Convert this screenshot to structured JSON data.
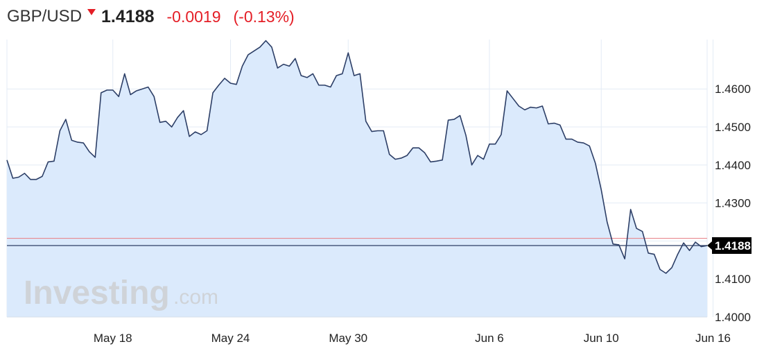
{
  "header": {
    "symbol": "GBP/USD",
    "direction_icon": "down-triangle-icon",
    "price": "1.4188",
    "change": "-0.0019",
    "change_pct": "(-0.13%)"
  },
  "watermark": {
    "brand": "Investing",
    "suffix": ".com"
  },
  "colors": {
    "line": "#2c3e66",
    "area": "#dbeafc",
    "negative": "#e41e26",
    "prev_close_line": "#e8898f",
    "last_line": "#2c3e66",
    "grid": "#e3ebf5"
  },
  "chart_data": {
    "type": "area",
    "title": "GBP/USD",
    "xlabel": "",
    "ylabel": "",
    "ylim": [
      1.4,
      1.473
    ],
    "y_ticks": [
      "1.4000",
      "1.4100",
      "1.4200",
      "1.4300",
      "1.4400",
      "1.4500",
      "1.4600"
    ],
    "x_ticks": [
      {
        "label": "May 18",
        "index": 18
      },
      {
        "label": "May 24",
        "index": 38
      },
      {
        "label": "May 30",
        "index": 58
      },
      {
        "label": "Jun 6",
        "index": 82
      },
      {
        "label": "Jun 10",
        "index": 101
      },
      {
        "label": "Jun 16",
        "index": 120
      }
    ],
    "reference_lines": {
      "previous_close": 1.4207,
      "last": 1.4188
    },
    "last_price_label": "1.4188",
    "series": [
      {
        "name": "GBP/USD",
        "values": [
          1.4413,
          1.4365,
          1.4368,
          1.4378,
          1.4362,
          1.4362,
          1.437,
          1.4408,
          1.441,
          1.449,
          1.452,
          1.4465,
          1.446,
          1.4458,
          1.4435,
          1.442,
          1.459,
          1.4597,
          1.4597,
          1.458,
          1.464,
          1.4585,
          1.4595,
          1.46,
          1.4605,
          1.458,
          1.4512,
          1.4515,
          1.45,
          1.4525,
          1.4543,
          1.4475,
          1.4487,
          1.448,
          1.449,
          1.459,
          1.461,
          1.4628,
          1.4615,
          1.4612,
          1.466,
          1.469,
          1.47,
          1.471,
          1.4727,
          1.471,
          1.4655,
          1.4665,
          1.466,
          1.468,
          1.4635,
          1.463,
          1.464,
          1.461,
          1.461,
          1.4605,
          1.4635,
          1.464,
          1.4695,
          1.4635,
          1.464,
          1.4515,
          1.4488,
          1.449,
          1.449,
          1.4428,
          1.4415,
          1.4418,
          1.4425,
          1.4445,
          1.4445,
          1.4432,
          1.4408,
          1.441,
          1.4413,
          1.4518,
          1.452,
          1.453,
          1.4478,
          1.44,
          1.4425,
          1.4415,
          1.4455,
          1.4455,
          1.448,
          1.4595,
          1.4575,
          1.4555,
          1.4545,
          1.4552,
          1.455,
          1.4555,
          1.4508,
          1.451,
          1.4505,
          1.4468,
          1.4468,
          1.446,
          1.4458,
          1.445,
          1.4405,
          1.4335,
          1.425,
          1.4192,
          1.419,
          1.4153,
          1.4283,
          1.4233,
          1.4225,
          1.4168,
          1.4165,
          1.4125,
          1.4115,
          1.413,
          1.4165,
          1.4195,
          1.4175,
          1.4197,
          1.4185,
          1.4188
        ]
      }
    ]
  }
}
